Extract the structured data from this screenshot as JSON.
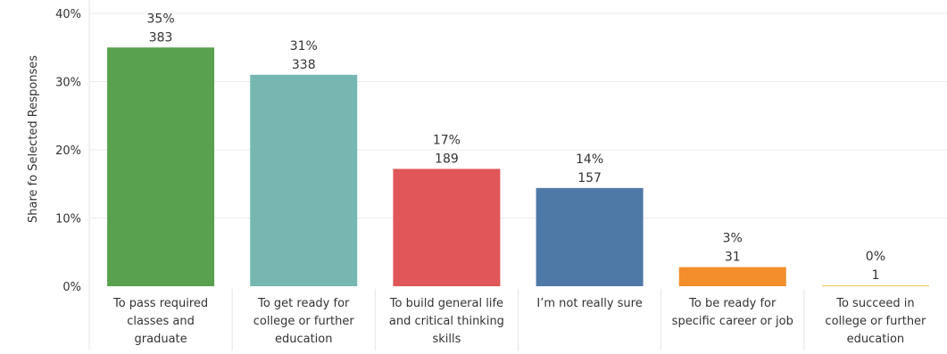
{
  "chart_data": {
    "type": "bar",
    "ylabel": "Share fo Selected Responses",
    "ylim": [
      0,
      40
    ],
    "y_ticks": [
      "0%",
      "10%",
      "20%",
      "30%",
      "40%"
    ],
    "y_tick_values": [
      0,
      10,
      20,
      30,
      40
    ],
    "grid": true,
    "legend": "none",
    "categories": [
      [
        "To pass required",
        "classes and",
        "graduate"
      ],
      [
        "To get ready for",
        "college or further",
        "education"
      ],
      [
        "To build general life",
        "and critical thinking",
        "skills"
      ],
      [
        "I’m not really sure"
      ],
      [
        "To be ready for",
        "specific career or job"
      ],
      [
        "To succeed in",
        "college or further",
        "education"
      ]
    ],
    "values": [
      35,
      31,
      17.2,
      14.4,
      2.8,
      0.1
    ],
    "percent_labels": [
      "35%",
      "31%",
      "17%",
      "14%",
      "3%",
      "0%"
    ],
    "count_labels": [
      "383",
      "338",
      "189",
      "157",
      "31",
      "1"
    ],
    "colors": [
      "#59a14f",
      "#76b7b2",
      "#e15759",
      "#4e79a7",
      "#f28e2b",
      "#edc948"
    ]
  }
}
